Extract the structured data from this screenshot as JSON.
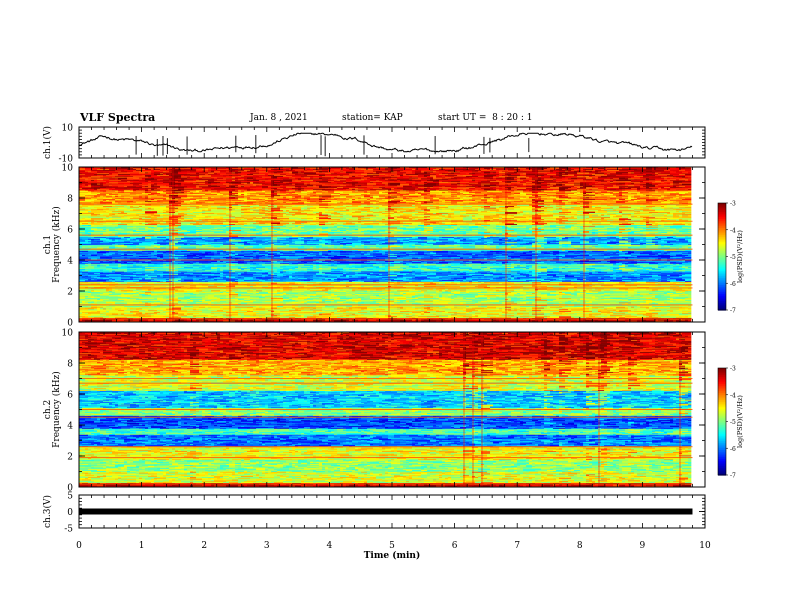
{
  "header": {
    "title": "VLF Spectra",
    "date": "Jan. 8 , 2021",
    "station": "station= KAP",
    "start": "start UT =  8 : 20 : 1"
  },
  "chart_data": [
    {
      "type": "line",
      "panel": "ch1_waveform",
      "ylabel": "ch.1(V)",
      "ylim": [
        -10,
        10
      ],
      "yticks": [
        "10",
        "-10"
      ],
      "x_range_min": [
        0,
        9.8
      ],
      "series": [
        {
          "color": "#000000"
        }
      ],
      "envelope_note_values_V": {
        "mean": 0,
        "range": [
          -6,
          6
        ]
      }
    },
    {
      "type": "heatmap",
      "panel": "ch1_spectrogram",
      "ylabel": "ch.1\nFrequency (kHz)",
      "ylim": [
        0,
        10
      ],
      "yticks": [
        "0",
        "2",
        "4",
        "6",
        "8",
        "10"
      ],
      "xlim": [
        0,
        10
      ],
      "data_x_extent": [
        0,
        9.8
      ],
      "colorbar": {
        "label": "log(PSD)(V²/Hz)",
        "range": [
          -7,
          -3
        ],
        "ticks": [
          "-3",
          "-4",
          "-5",
          "-6",
          "-7"
        ]
      },
      "band_levels": [
        {
          "f": [
            0,
            0.3
          ],
          "level": -3.4
        },
        {
          "f": [
            0.3,
            1.0
          ],
          "level": -4.6
        },
        {
          "f": [
            1.0,
            2.0
          ],
          "level": -4.9
        },
        {
          "f": [
            2.0,
            2.6
          ],
          "level": -4.6
        },
        {
          "f": [
            2.6,
            3.3
          ],
          "level": -6.0
        },
        {
          "f": [
            3.3,
            3.8
          ],
          "level": -5.4
        },
        {
          "f": [
            3.8,
            4.6
          ],
          "level": -6.2
        },
        {
          "f": [
            4.6,
            5.0
          ],
          "level": -5.2
        },
        {
          "f": [
            5.0,
            5.5
          ],
          "level": -6.0
        },
        {
          "f": [
            5.5,
            6.3
          ],
          "level": -5.2
        },
        {
          "f": [
            6.3,
            7.6
          ],
          "level": -4.6
        },
        {
          "f": [
            7.6,
            8.5
          ],
          "level": -4.2
        },
        {
          "f": [
            8.5,
            10.0
          ],
          "level": -3.6
        }
      ],
      "lines_kHz": [
        0.2,
        1.1,
        2.2,
        2.4,
        4.0,
        4.7,
        5.6,
        6.5,
        7.6
      ]
    },
    {
      "type": "heatmap",
      "panel": "ch2_spectrogram",
      "ylabel": "ch.2\nFrequency (kHz)",
      "ylim": [
        0,
        10
      ],
      "yticks": [
        "0",
        "2",
        "4",
        "6",
        "8",
        "10"
      ],
      "xlim": [
        0,
        10
      ],
      "data_x_extent": [
        0,
        9.8
      ],
      "colorbar": {
        "label": "log(PSD)(V²/Hz)",
        "range": [
          -7,
          -3
        ],
        "ticks": [
          "-3",
          "-4",
          "-5",
          "-6",
          "-7"
        ]
      },
      "band_levels": [
        {
          "f": [
            0,
            0.3
          ],
          "level": -3.4
        },
        {
          "f": [
            0.3,
            1.0
          ],
          "level": -4.7
        },
        {
          "f": [
            1.0,
            1.8
          ],
          "level": -5.0
        },
        {
          "f": [
            1.8,
            2.6
          ],
          "level": -4.6
        },
        {
          "f": [
            2.6,
            3.4
          ],
          "level": -6.1
        },
        {
          "f": [
            3.4,
            3.8
          ],
          "level": -5.3
        },
        {
          "f": [
            3.8,
            4.6
          ],
          "level": -6.3
        },
        {
          "f": [
            4.6,
            5.1
          ],
          "level": -5.0
        },
        {
          "f": [
            5.1,
            6.2
          ],
          "level": -5.8
        },
        {
          "f": [
            6.2,
            7.2
          ],
          "level": -4.8
        },
        {
          "f": [
            7.2,
            8.2
          ],
          "level": -4.3
        },
        {
          "f": [
            8.2,
            10.0
          ],
          "level": -3.5
        }
      ],
      "lines_kHz": [
        0.2,
        1.9,
        2.6,
        4.5,
        5.0,
        6.7,
        7.0
      ]
    },
    {
      "type": "line",
      "panel": "ch3_waveform",
      "ylabel": "ch.3(V)",
      "ylim": [
        -5,
        5
      ],
      "yticks": [
        "5",
        "0",
        "-5"
      ],
      "x_range_min": [
        0,
        9.8
      ],
      "series": [
        {
          "color": "#000000",
          "value": 0
        }
      ]
    }
  ],
  "xaxis": {
    "label": "Time (min)",
    "ticks": [
      "0",
      "1",
      "2",
      "3",
      "4",
      "5",
      "6",
      "7",
      "8",
      "9",
      "10"
    ],
    "xlim": [
      0,
      10
    ]
  }
}
